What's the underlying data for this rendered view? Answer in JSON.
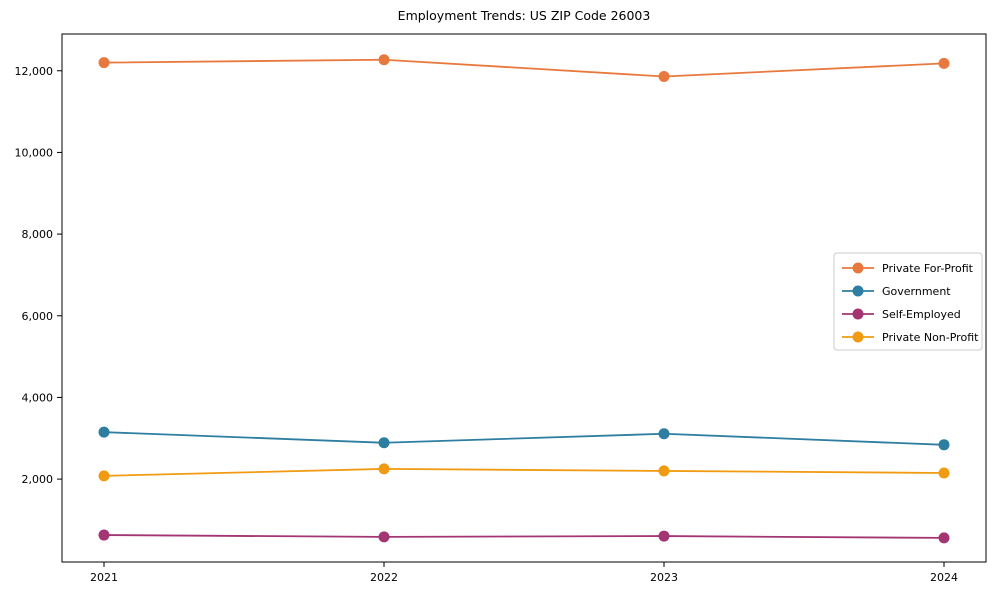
{
  "chart_data": {
    "type": "line",
    "title": "Employment Trends: US ZIP Code 26003",
    "x": [
      2021,
      2022,
      2023,
      2024
    ],
    "x_tick_labels": [
      "2021",
      "2022",
      "2023",
      "2024"
    ],
    "series": [
      {
        "name": "Private For-Profit",
        "color": "#E8793E",
        "values": [
          12200,
          12270,
          11860,
          12180
        ]
      },
      {
        "name": "Government",
        "color": "#2E7EA1",
        "values": [
          3150,
          2890,
          3110,
          2840
        ]
      },
      {
        "name": "Self-Employed",
        "color": "#A23572",
        "values": [
          630,
          585,
          605,
          560
        ]
      },
      {
        "name": "Private Non-Profit",
        "color": "#F09B13",
        "values": [
          2080,
          2250,
          2200,
          2150
        ]
      }
    ],
    "xlabel": "",
    "ylabel": "",
    "xlim": [
      2020.85,
      2024.15
    ],
    "ylim": [
      -30,
      12900
    ],
    "yticks": [
      2000,
      4000,
      6000,
      8000,
      10000,
      12000
    ],
    "ytick_format": "comma",
    "grid": false,
    "marker": "circle",
    "legend": {
      "position": "center-right",
      "background": "#ffffff",
      "border_color": "#cccccc",
      "entries": [
        "Private For-Profit",
        "Government",
        "Self-Employed",
        "Private Non-Profit"
      ]
    },
    "spine_color": "#000000"
  }
}
